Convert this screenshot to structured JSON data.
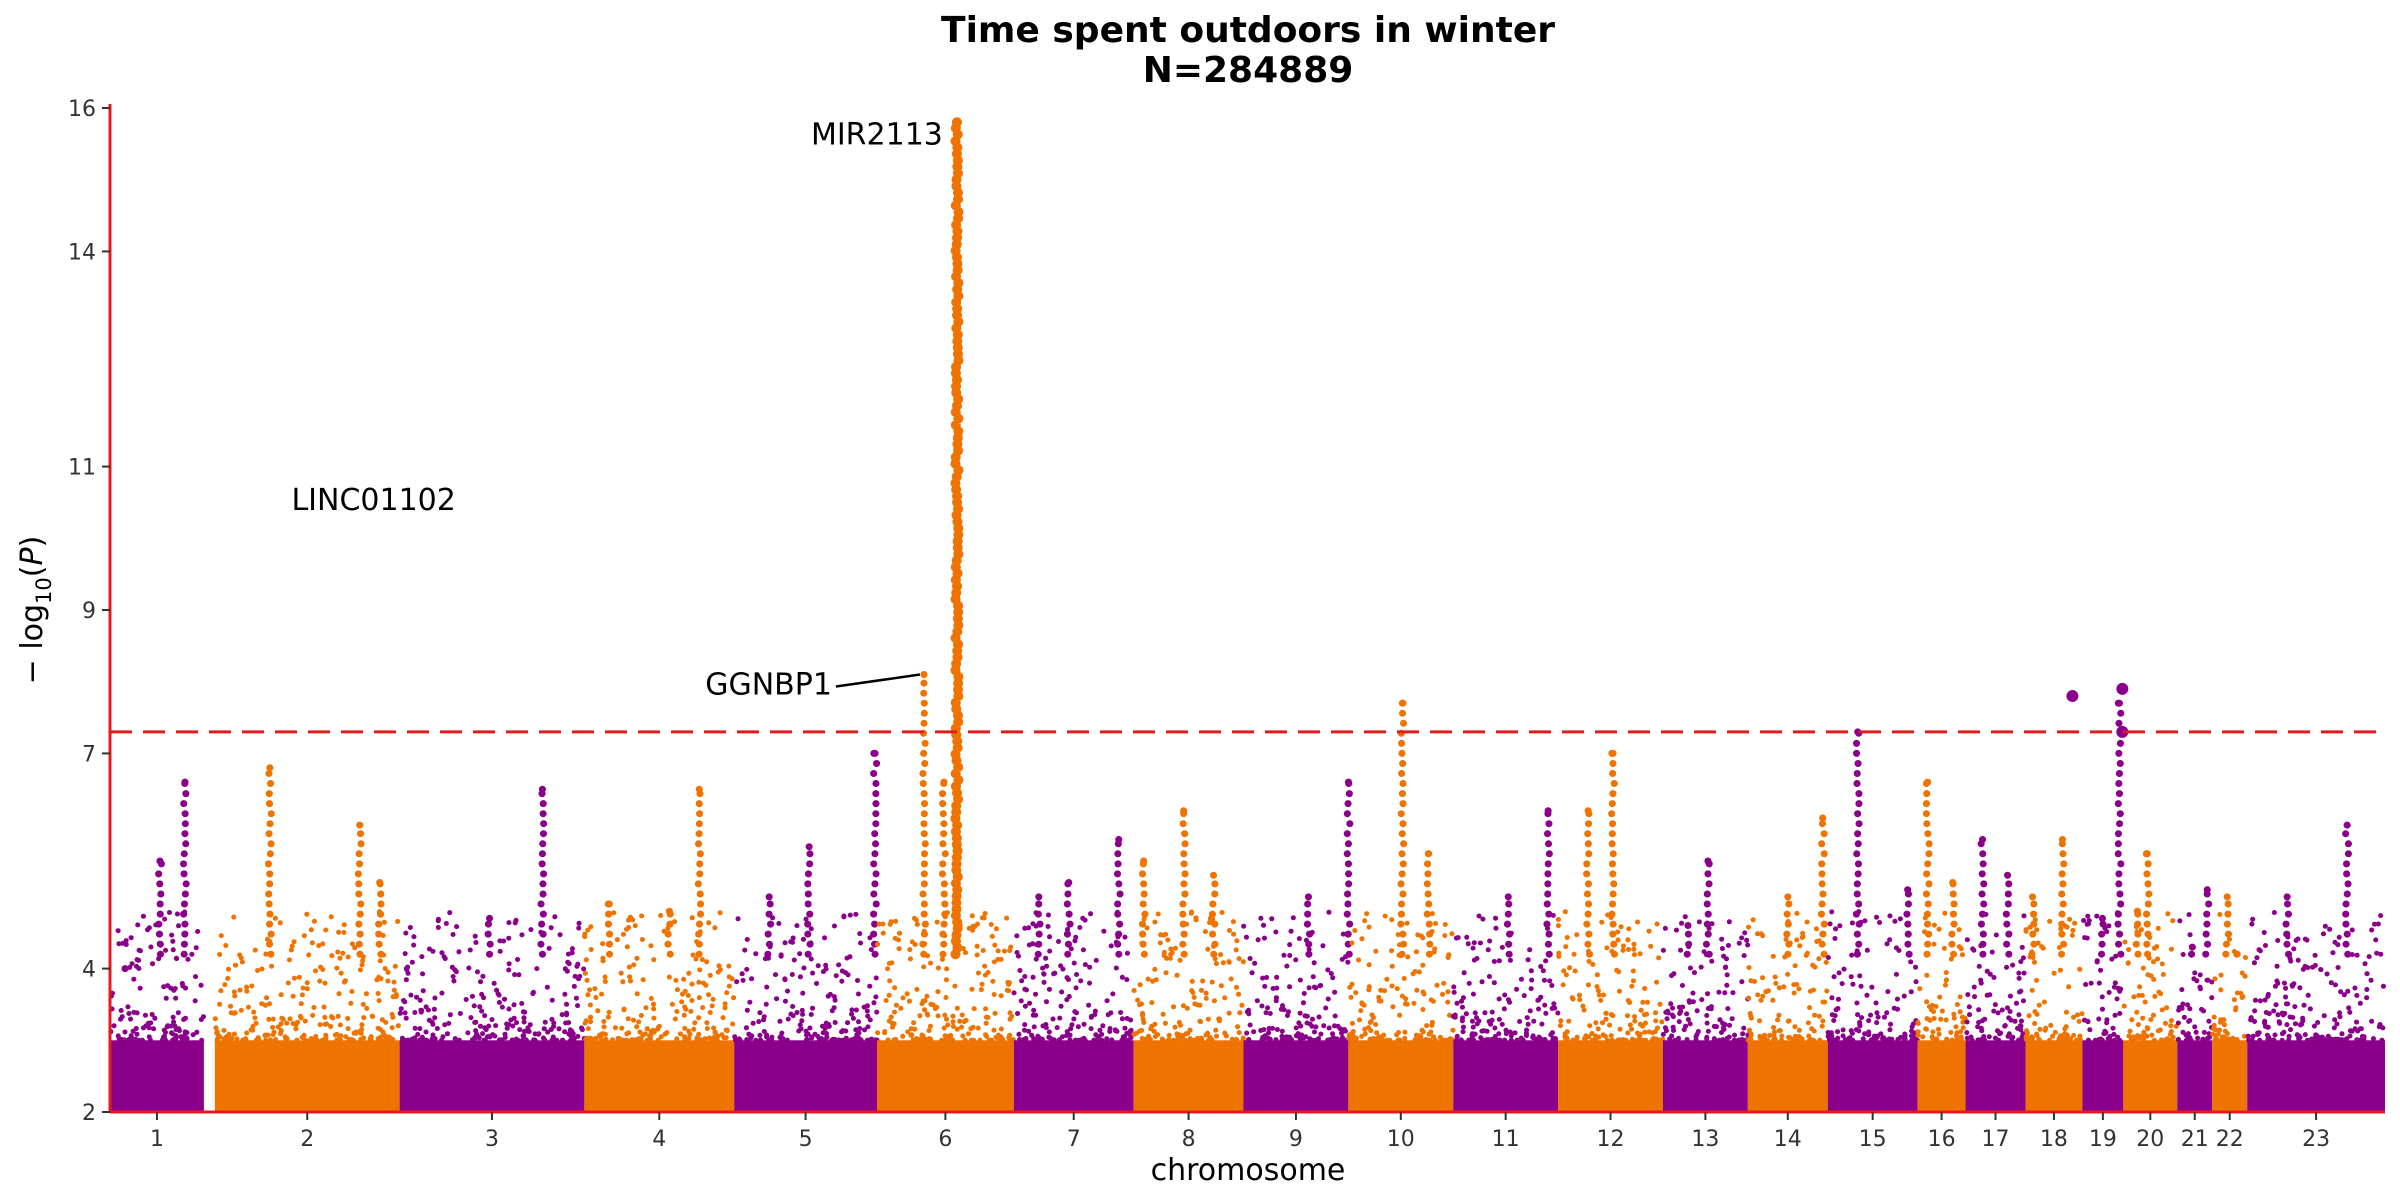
{
  "chart_data": {
    "type": "scatter",
    "title": "Time spent outdoors in winter",
    "subtitle": "N=284889",
    "xlabel": "chromosome",
    "ylabel": "-log10(P)",
    "ylim": [
      2,
      16
    ],
    "yticks": [
      2,
      4,
      7,
      9,
      11,
      14,
      16
    ],
    "significance_threshold": 7.3,
    "colors": {
      "odd": "#8b008b",
      "even": "#ef7300",
      "threshold": "#e41a1c",
      "axis": "#e41a1c"
    },
    "chromosomes": [
      {
        "label": "1",
        "start": 0,
        "end": 94,
        "peaks": [
          [
            75,
            6.6
          ],
          [
            50,
            5.5
          ],
          [
            15,
            4.0
          ]
        ]
      },
      {
        "label": "2",
        "start": 105,
        "end": 290,
        "peaks": [
          [
            160,
            6.8
          ],
          [
            250,
            6.0
          ],
          [
            270,
            5.2
          ]
        ]
      },
      {
        "label": "3",
        "start": 290,
        "end": 475,
        "peaks": [
          [
            433,
            6.5
          ],
          [
            380,
            4.7
          ]
        ]
      },
      {
        "label": "4",
        "start": 475,
        "end": 625,
        "peaks": [
          [
            590,
            6.5
          ],
          [
            560,
            4.8
          ],
          [
            500,
            4.9
          ]
        ]
      },
      {
        "label": "5",
        "start": 625,
        "end": 768,
        "peaks": [
          [
            766,
            7.0
          ],
          [
            700,
            5.7
          ],
          [
            660,
            5.0
          ]
        ]
      },
      {
        "label": "6",
        "start": 768,
        "end": 905,
        "peaks": [
          [
            848,
            15.8
          ],
          [
            815,
            8.1
          ],
          [
            835,
            6.6
          ]
        ]
      },
      {
        "label": "7",
        "start": 905,
        "end": 1025,
        "peaks": [
          [
            1010,
            5.8
          ],
          [
            960,
            5.2
          ],
          [
            930,
            5.0
          ]
        ]
      },
      {
        "label": "8",
        "start": 1025,
        "end": 1135,
        "peaks": [
          [
            1075,
            6.2
          ],
          [
            1035,
            5.5
          ],
          [
            1105,
            5.3
          ]
        ]
      },
      {
        "label": "9",
        "start": 1135,
        "end": 1240,
        "peaks": [
          [
            1240,
            6.6
          ],
          [
            1200,
            5.0
          ]
        ]
      },
      {
        "label": "10",
        "start": 1240,
        "end": 1345,
        "peaks": [
          [
            1294,
            7.7
          ],
          [
            1320,
            5.6
          ]
        ]
      },
      {
        "label": "11",
        "start": 1345,
        "end": 1450,
        "peaks": [
          [
            1440,
            6.2
          ],
          [
            1400,
            5.0
          ]
        ]
      },
      {
        "label": "12",
        "start": 1450,
        "end": 1555,
        "peaks": [
          [
            1505,
            7.0
          ],
          [
            1480,
            6.2
          ]
        ]
      },
      {
        "label": "13",
        "start": 1555,
        "end": 1640,
        "peaks": [
          [
            1600,
            5.5
          ],
          [
            1580,
            4.6
          ]
        ]
      },
      {
        "label": "14",
        "start": 1640,
        "end": 1720,
        "peaks": [
          [
            1715,
            6.1
          ],
          [
            1680,
            5.0
          ]
        ]
      },
      {
        "label": "15",
        "start": 1720,
        "end": 1810,
        "peaks": [
          [
            1750,
            7.3
          ],
          [
            1800,
            5.1
          ]
        ]
      },
      {
        "label": "16",
        "start": 1810,
        "end": 1858,
        "peaks": [
          [
            1820,
            6.6
          ],
          [
            1845,
            5.2
          ]
        ]
      },
      {
        "label": "17",
        "start": 1858,
        "end": 1918,
        "peaks": [
          [
            1875,
            5.8
          ],
          [
            1900,
            5.3
          ]
        ]
      },
      {
        "label": "18",
        "start": 1918,
        "end": 1975,
        "peaks": [
          [
            1955,
            5.8
          ],
          [
            1925,
            5.0
          ]
        ]
      },
      {
        "label": "19",
        "start": 1975,
        "end": 2016,
        "peaks": [
          [
            2012,
            7.7
          ],
          [
            1995,
            4.7
          ]
        ]
      },
      {
        "label": "20",
        "start": 2016,
        "end": 2070,
        "peaks": [
          [
            2040,
            5.6
          ],
          [
            2030,
            4.8
          ]
        ]
      },
      {
        "label": "21",
        "start": 2070,
        "end": 2105,
        "peaks": [
          [
            2100,
            5.1
          ],
          [
            2085,
            4.3
          ]
        ]
      },
      {
        "label": "22",
        "start": 2105,
        "end": 2140,
        "peaks": [
          [
            2120,
            5.0
          ],
          [
            2130,
            4.2
          ]
        ]
      },
      {
        "label": "23",
        "start": 2140,
        "end": 2278,
        "peaks": [
          [
            2240,
            6.0
          ],
          [
            2180,
            5.0
          ]
        ]
      }
    ],
    "highlight_points": [
      {
        "x": 1965,
        "y": 7.8
      },
      {
        "x": 2015,
        "y": 7.9
      },
      {
        "x": 2015,
        "y": 7.3
      }
    ],
    "annotations": [
      {
        "label": "MIR2113",
        "x": 848,
        "y": 15.8
      },
      {
        "label": "LINC01102",
        "x": 264,
        "y": 10.2
      },
      {
        "label": "GGNBP1",
        "x": 815,
        "y": 8.1,
        "leader": true
      }
    ]
  }
}
